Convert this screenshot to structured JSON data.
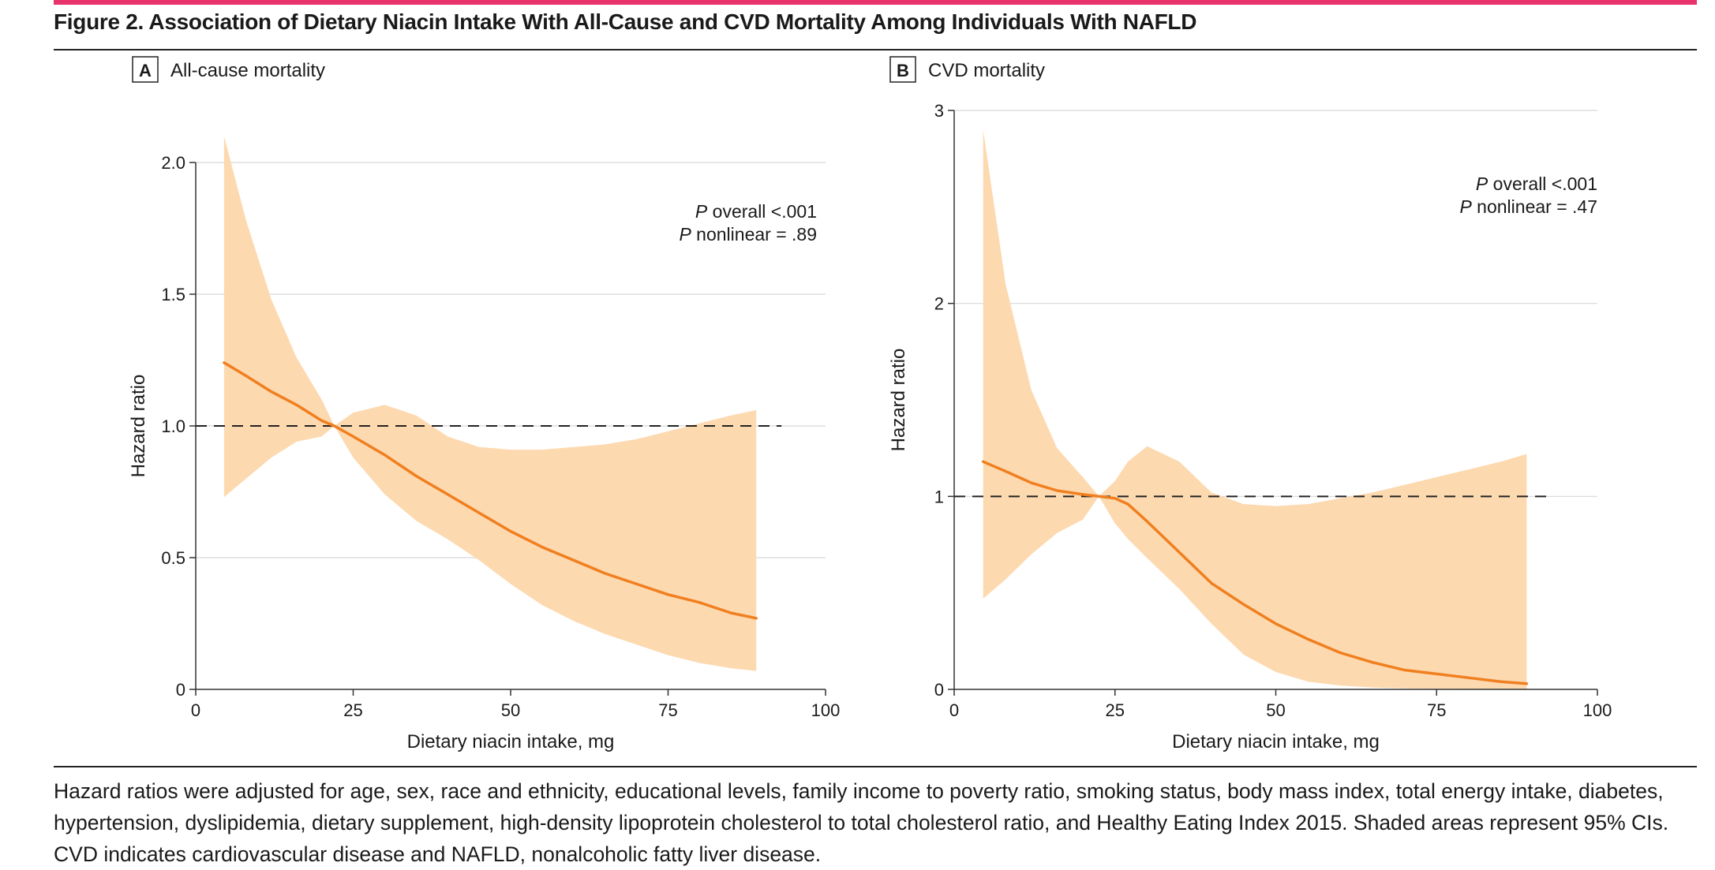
{
  "accent_color": "#e8336d",
  "line_color": "#f07f1f",
  "band_color": "#fdd9b0",
  "figure_title": "Figure 2. Association of Dietary Niacin Intake With All-Cause and CVD Mortality Among Individuals With NAFLD",
  "caption": "Hazard ratios were adjusted for age, sex, race and ethnicity, educational levels, family income to poverty ratio, smoking status, body mass index, total energy intake, diabetes, hypertension, dyslipidemia, dietary supplement, high-density lipoprotein cholesterol to total cholesterol ratio, and Healthy Eating Index 2015. Shaded areas represent 95% CIs. CVD indicates cardiovascular disease and NAFLD, nonalcoholic fatty liver disease.",
  "chart_data": [
    {
      "type": "line",
      "panel_letter": "A",
      "title": "All-cause mortality",
      "xlabel": "Dietary niacin intake, mg",
      "ylabel": "Hazard ratio",
      "xlim": [
        0,
        100
      ],
      "ylim": [
        0,
        2.0
      ],
      "xticks": [
        0,
        25,
        50,
        75,
        100
      ],
      "xtick_labels": [
        "0",
        "25",
        "50",
        "75",
        "100"
      ],
      "yticks": [
        0,
        0.5,
        1.0,
        1.5,
        2.0
      ],
      "ytick_labels": [
        "0",
        "0.5",
        "1.0",
        "1.5",
        "2.0"
      ],
      "reference_line": 1.0,
      "reference_xrange": [
        0,
        93
      ],
      "grid": true,
      "annotation": {
        "p1_italic": "P",
        "p1_rest": " overall <.001",
        "p2_italic": "P",
        "p2_rest": " nonlinear = .89"
      },
      "series": {
        "x": [
          4.5,
          8,
          12,
          16,
          20,
          22,
          25,
          30,
          35,
          40,
          45,
          50,
          55,
          60,
          65,
          70,
          75,
          80,
          85,
          89
        ],
        "y": [
          1.24,
          1.19,
          1.13,
          1.08,
          1.02,
          1.0,
          0.96,
          0.89,
          0.81,
          0.74,
          0.67,
          0.6,
          0.54,
          0.49,
          0.44,
          0.4,
          0.36,
          0.33,
          0.29,
          0.27
        ],
        "upper": [
          2.1,
          1.78,
          1.48,
          1.26,
          1.1,
          1.0,
          1.05,
          1.08,
          1.04,
          0.96,
          0.92,
          0.91,
          0.91,
          0.92,
          0.93,
          0.95,
          0.98,
          1.01,
          1.04,
          1.06
        ],
        "lower": [
          0.73,
          0.8,
          0.88,
          0.94,
          0.96,
          1.0,
          0.88,
          0.74,
          0.64,
          0.57,
          0.49,
          0.4,
          0.32,
          0.26,
          0.21,
          0.17,
          0.13,
          0.1,
          0.08,
          0.07
        ]
      }
    },
    {
      "type": "line",
      "panel_letter": "B",
      "title": "CVD mortality",
      "xlabel": "Dietary niacin intake, mg",
      "ylabel": "Hazard ratio",
      "xlim": [
        0,
        100
      ],
      "ylim": [
        0,
        3
      ],
      "xticks": [
        0,
        25,
        50,
        75,
        100
      ],
      "xtick_labels": [
        "0",
        "25",
        "50",
        "75",
        "100"
      ],
      "yticks": [
        0,
        1,
        2,
        3
      ],
      "ytick_labels": [
        "0",
        "1",
        "2",
        "3"
      ],
      "reference_line": 1,
      "reference_xrange": [
        0,
        93
      ],
      "grid": true,
      "annotation": {
        "p1_italic": "P",
        "p1_rest": " overall <.001",
        "p2_italic": "P",
        "p2_rest": " nonlinear = .47"
      },
      "series": {
        "x": [
          4.5,
          8,
          12,
          16,
          20,
          22.5,
          25,
          27,
          30,
          35,
          40,
          45,
          50,
          55,
          60,
          65,
          70,
          75,
          80,
          85,
          89
        ],
        "y": [
          1.18,
          1.13,
          1.07,
          1.03,
          1.01,
          1.0,
          0.99,
          0.96,
          0.87,
          0.71,
          0.55,
          0.44,
          0.34,
          0.26,
          0.19,
          0.14,
          0.1,
          0.08,
          0.06,
          0.04,
          0.03
        ],
        "upper": [
          2.9,
          2.1,
          1.55,
          1.25,
          1.1,
          1.0,
          1.08,
          1.18,
          1.26,
          1.18,
          1.02,
          0.96,
          0.95,
          0.96,
          0.99,
          1.02,
          1.06,
          1.1,
          1.14,
          1.18,
          1.22
        ],
        "lower": [
          0.47,
          0.57,
          0.7,
          0.81,
          0.88,
          1.0,
          0.86,
          0.78,
          0.68,
          0.52,
          0.34,
          0.18,
          0.09,
          0.04,
          0.02,
          0.01,
          0.005,
          0.003,
          0.002,
          0.001,
          0.001
        ]
      }
    }
  ]
}
